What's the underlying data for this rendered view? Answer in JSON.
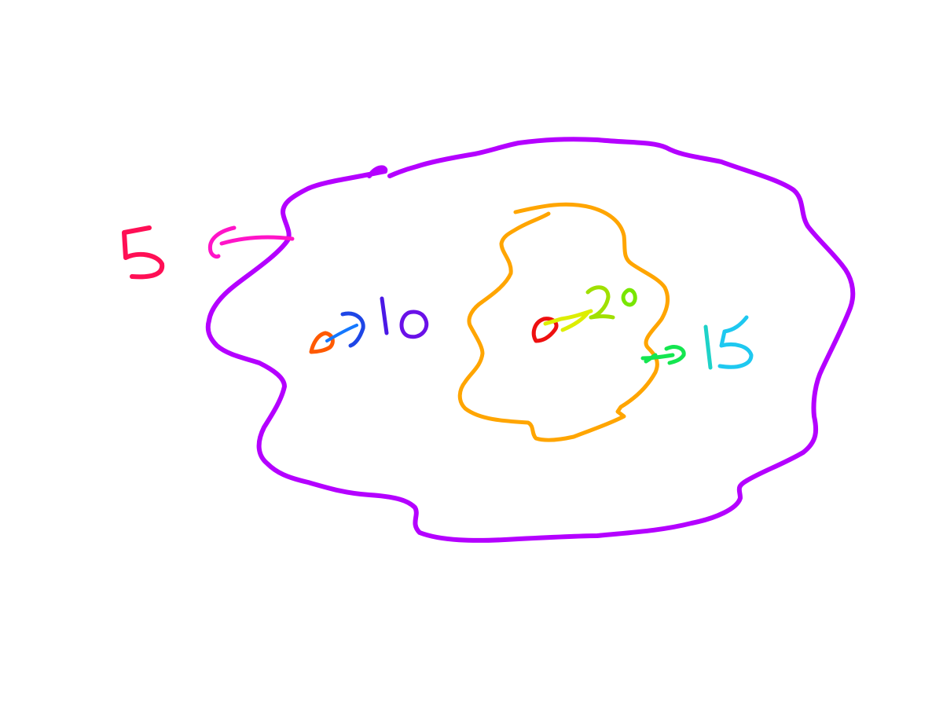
{
  "labels": {
    "outer_contour": "5",
    "outer_point": "10",
    "inner_contour": "15",
    "center_point": "20"
  },
  "colors": {
    "outer_contour": "#b400ff",
    "inner_contour": "#ffa500",
    "label_5": "#ff0f55",
    "arrow_5": "#ff14c8",
    "label_10": "#4b18e6",
    "arrow_10": "#1478ff",
    "point_10": "#ff5a00",
    "label_15": "#1ec8f0",
    "arrow_15": "#14e650",
    "label_20": "#78e600",
    "arrow_20": "#ddee00",
    "point_20": "#ee1010"
  }
}
